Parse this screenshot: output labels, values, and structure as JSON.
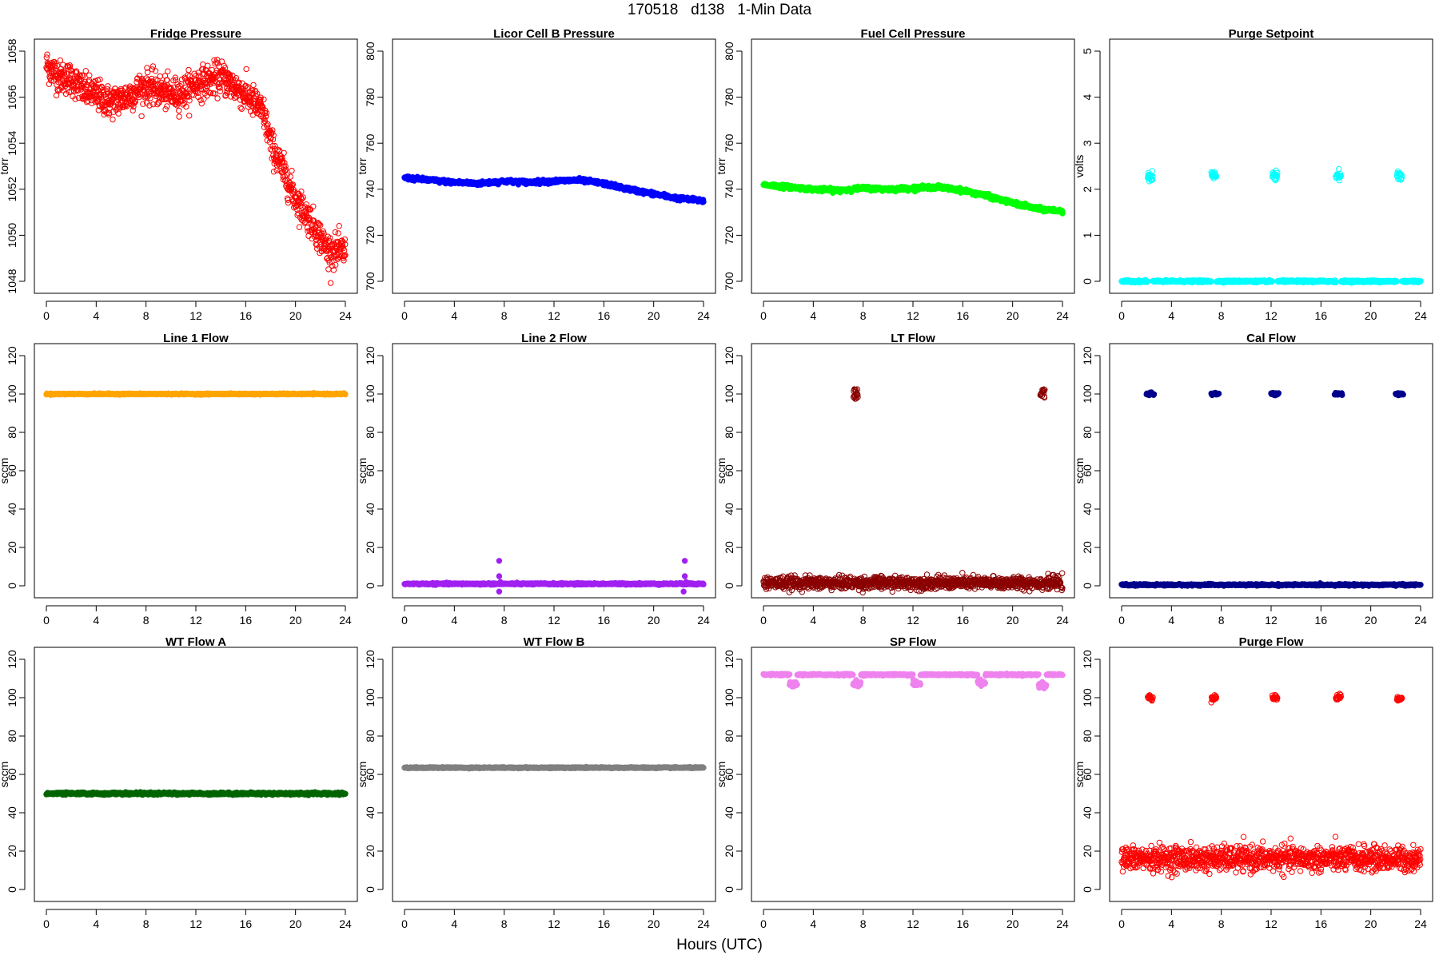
{
  "page": {
    "title": "170518   d138   1-Min Data",
    "xlabel": "Hours (UTC)"
  },
  "chart_data": [
    {
      "name": "fridge-pressure",
      "type": "scatter",
      "title": "Fridge Pressure",
      "xlabel": "",
      "ylabel": "torr",
      "color": "#ff0000",
      "filled": false,
      "xlim": [
        0,
        24
      ],
      "ylim": [
        1048,
        1058
      ],
      "xticks": [
        0,
        4,
        8,
        12,
        16,
        20,
        24
      ],
      "yticks": [
        1048,
        1050,
        1052,
        1054,
        1056,
        1058
      ],
      "trend": {
        "x": [
          0,
          1,
          2,
          3,
          4,
          5,
          6,
          7,
          8,
          9,
          10,
          11,
          12,
          13,
          14,
          15,
          16,
          17,
          17.5,
          18,
          19,
          20,
          21,
          22,
          22.5,
          23,
          24
        ],
        "y": [
          1057.4,
          1056.9,
          1056.8,
          1056.3,
          1056.1,
          1055.8,
          1055.9,
          1056.2,
          1056.5,
          1056.3,
          1056.1,
          1056.2,
          1056.6,
          1056.7,
          1056.9,
          1056.5,
          1056.1,
          1055.6,
          1055.2,
          1054.0,
          1052.8,
          1051.6,
          1050.8,
          1049.9,
          1049.4,
          1049.3,
          1049.3
        ]
      },
      "noise": 0.35
    },
    {
      "name": "licor-cell-b-pressure",
      "type": "scatter",
      "title": "Licor Cell B Pressure",
      "xlabel": "",
      "ylabel": "torr",
      "color": "#0000ff",
      "filled": true,
      "xlim": [
        0,
        24
      ],
      "ylim": [
        700,
        800
      ],
      "xticks": [
        0,
        4,
        8,
        12,
        16,
        20,
        24
      ],
      "yticks": [
        700,
        720,
        740,
        760,
        780,
        800
      ],
      "trend": {
        "x": [
          0,
          2,
          4,
          6,
          8,
          10,
          12,
          14,
          16,
          18,
          20,
          22,
          24
        ],
        "y": [
          745,
          744,
          743,
          742.5,
          743.5,
          743,
          743.5,
          744,
          742.5,
          740,
          738,
          736,
          735
        ]
      },
      "noise": 0.4
    },
    {
      "name": "fuel-cell-pressure",
      "type": "scatter",
      "title": "Fuel Cell Pressure",
      "xlabel": "",
      "ylabel": "torr",
      "color": "#00ff00",
      "filled": true,
      "xlim": [
        0,
        24
      ],
      "ylim": [
        700,
        800
      ],
      "xticks": [
        0,
        4,
        8,
        12,
        16,
        20,
        24
      ],
      "yticks": [
        700,
        720,
        740,
        760,
        780,
        800
      ],
      "trend": {
        "x": [
          0,
          2,
          4,
          6,
          8,
          10,
          12,
          14,
          16,
          18,
          20,
          22,
          24
        ],
        "y": [
          742,
          741,
          740,
          739.5,
          740.5,
          740,
          740.5,
          741,
          739.5,
          737,
          734,
          731.5,
          730.5
        ]
      },
      "noise": 0.4
    },
    {
      "name": "purge-setpoint",
      "type": "scatter",
      "title": "Purge Setpoint",
      "xlabel": "",
      "ylabel": "volts",
      "color": "#00ffff",
      "filled": false,
      "xlim": [
        0,
        24
      ],
      "ylim": [
        0,
        5
      ],
      "xticks": [
        0,
        4,
        8,
        12,
        16,
        20,
        24
      ],
      "yticks": [
        0,
        1,
        2,
        3,
        4,
        5
      ],
      "baseline": 0,
      "noise": 0.01,
      "bursts": [
        {
          "x": 2.3,
          "y": 2.3
        },
        {
          "x": 7.4,
          "y": 2.3
        },
        {
          "x": 12.3,
          "y": 2.3
        },
        {
          "x": 17.4,
          "y": 2.3
        },
        {
          "x": 22.3,
          "y": 2.3
        }
      ],
      "burst_width": 0.4
    },
    {
      "name": "line-1-flow",
      "type": "scatter",
      "title": "Line 1 Flow",
      "xlabel": "",
      "ylabel": "sccm",
      "color": "#ffa500",
      "filled": true,
      "xlim": [
        0,
        24
      ],
      "ylim": [
        0,
        120
      ],
      "xticks": [
        0,
        4,
        8,
        12,
        16,
        20,
        24
      ],
      "yticks": [
        0,
        20,
        40,
        60,
        80,
        100,
        120
      ],
      "baseline": 100,
      "noise": 0.15
    },
    {
      "name": "line-2-flow",
      "type": "scatter",
      "title": "Line 2 Flow",
      "xlabel": "",
      "ylabel": "sccm",
      "color": "#a020f0",
      "filled": true,
      "xlim": [
        0,
        24
      ],
      "ylim": [
        0,
        120
      ],
      "xticks": [
        0,
        4,
        8,
        12,
        16,
        20,
        24
      ],
      "yticks": [
        0,
        20,
        40,
        60,
        80,
        100,
        120
      ],
      "baseline": 1,
      "noise": 0.2,
      "outliers": [
        {
          "x": 7.6,
          "y": 13
        },
        {
          "x": 7.6,
          "y": 5
        },
        {
          "x": 7.6,
          "y": -3
        },
        {
          "x": 7.7,
          "y": 2
        },
        {
          "x": 22.5,
          "y": 13
        },
        {
          "x": 22.5,
          "y": 5
        },
        {
          "x": 22.4,
          "y": -3
        },
        {
          "x": 22.6,
          "y": 2
        }
      ]
    },
    {
      "name": "lt-flow",
      "type": "scatter",
      "title": "LT Flow",
      "xlabel": "",
      "ylabel": "sccm",
      "color": "#8b0000",
      "filled": false,
      "xlim": [
        0,
        24
      ],
      "ylim": [
        0,
        120
      ],
      "xticks": [
        0,
        4,
        8,
        12,
        16,
        20,
        24
      ],
      "yticks": [
        0,
        20,
        40,
        60,
        80,
        100,
        120
      ],
      "baseline": 1.5,
      "noise": 1.6,
      "bursts": [
        {
          "x": 7.4,
          "y": 100
        },
        {
          "x": 22.4,
          "y": 100
        }
      ],
      "burst_width": 0.35,
      "burst_spread": 2.5
    },
    {
      "name": "cal-flow",
      "type": "scatter",
      "title": "Cal Flow",
      "xlabel": "",
      "ylabel": "sccm",
      "color": "#00008b",
      "filled": true,
      "xlim": [
        0,
        24
      ],
      "ylim": [
        0,
        120
      ],
      "xticks": [
        0,
        4,
        8,
        12,
        16,
        20,
        24
      ],
      "yticks": [
        0,
        20,
        40,
        60,
        80,
        100,
        120
      ],
      "baseline": 0.5,
      "noise": 0.2,
      "bursts": [
        {
          "x": 2.3,
          "y": 100
        },
        {
          "x": 7.5,
          "y": 100
        },
        {
          "x": 12.3,
          "y": 100
        },
        {
          "x": 17.4,
          "y": 100
        },
        {
          "x": 22.3,
          "y": 100
        }
      ],
      "burst_width": 0.6,
      "burst_spread": 0.3
    },
    {
      "name": "wt-flow-a",
      "type": "scatter",
      "title": "WT Flow A",
      "xlabel": "",
      "ylabel": "sccm",
      "color": "#006400",
      "filled": true,
      "xlim": [
        0,
        24
      ],
      "ylim": [
        0,
        120
      ],
      "xticks": [
        0,
        4,
        8,
        12,
        16,
        20,
        24
      ],
      "yticks": [
        0,
        20,
        40,
        60,
        80,
        100,
        120
      ],
      "baseline": 50,
      "noise": 0.3
    },
    {
      "name": "wt-flow-b",
      "type": "scatter",
      "title": "WT Flow B",
      "xlabel": "",
      "ylabel": "sccm",
      "color": "#808080",
      "filled": true,
      "xlim": [
        0,
        24
      ],
      "ylim": [
        0,
        120
      ],
      "xticks": [
        0,
        4,
        8,
        12,
        16,
        20,
        24
      ],
      "yticks": [
        0,
        20,
        40,
        60,
        80,
        100,
        120
      ],
      "baseline": 63.5,
      "noise": 0.15
    },
    {
      "name": "sp-flow",
      "type": "scatter",
      "title": "SP Flow",
      "xlabel": "",
      "ylabel": "sccm",
      "color": "#ee82ee",
      "filled": true,
      "xlim": [
        0,
        24
      ],
      "ylim": [
        0,
        120
      ],
      "xticks": [
        0,
        4,
        8,
        12,
        16,
        20,
        24
      ],
      "yticks": [
        0,
        20,
        40,
        60,
        80,
        100,
        120
      ],
      "baseline": 112,
      "noise": 0.2,
      "bursts": [
        {
          "x": 2.4,
          "y": 107.5
        },
        {
          "x": 7.5,
          "y": 107
        },
        {
          "x": 12.3,
          "y": 107.5
        },
        {
          "x": 17.5,
          "y": 107.5
        },
        {
          "x": 22.4,
          "y": 107
        }
      ],
      "burst_width": 0.6,
      "burst_spread": 0.8
    },
    {
      "name": "purge-flow",
      "type": "scatter",
      "title": "Purge Flow",
      "xlabel": "",
      "ylabel": "sccm",
      "color": "#ff0000",
      "filled": false,
      "xlim": [
        0,
        24
      ],
      "ylim": [
        0,
        120
      ],
      "xticks": [
        0,
        4,
        8,
        12,
        16,
        20,
        24
      ],
      "yticks": [
        0,
        20,
        40,
        60,
        80,
        100,
        120
      ],
      "baseline": 16,
      "noise": 3.2,
      "bursts": [
        {
          "x": 2.3,
          "y": 100
        },
        {
          "x": 7.4,
          "y": 100
        },
        {
          "x": 12.3,
          "y": 100
        },
        {
          "x": 17.4,
          "y": 100
        },
        {
          "x": 22.3,
          "y": 100
        }
      ],
      "burst_width": 0.4,
      "burst_spread": 0.8
    }
  ]
}
